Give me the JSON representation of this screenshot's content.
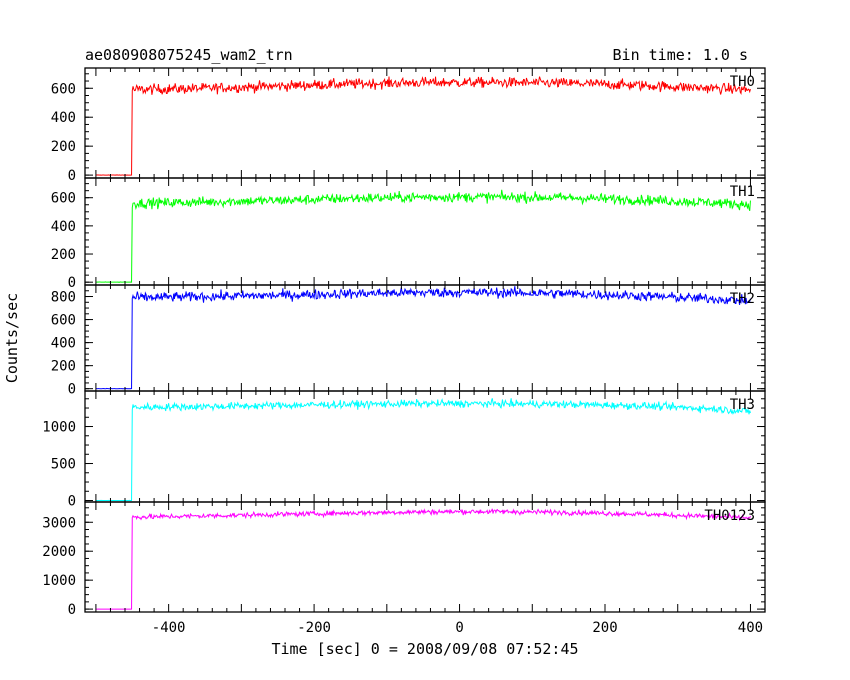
{
  "header": {
    "title": "ae080908075245_wam2_trn",
    "bin_time": "Bin time: 1.0 s"
  },
  "axes": {
    "xlabel": "Time [sec] 0 = 2008/09/08 07:52:45",
    "ylabel": "Counts/sec",
    "xlim": [
      -515,
      420
    ],
    "xticks": [
      -400,
      -200,
      0,
      200,
      400
    ]
  },
  "chart_data": [
    {
      "type": "line",
      "name": "TH0",
      "color": "#ff0000",
      "ylim": [
        -20,
        740
      ],
      "yticks": [
        0,
        200,
        400,
        600
      ],
      "pre_level": 0,
      "onset_time": -450,
      "profile": {
        "x": [
          -450,
          -350,
          -250,
          -150,
          -50,
          50,
          150,
          250,
          350,
          400
        ],
        "y": [
          590,
          600,
          615,
          630,
          640,
          640,
          635,
          620,
          600,
          590
        ]
      },
      "noise": 25
    },
    {
      "type": "line",
      "name": "TH1",
      "color": "#00ff00",
      "ylim": [
        -20,
        740
      ],
      "yticks": [
        0,
        200,
        400,
        600
      ],
      "pre_level": 0,
      "onset_time": -450,
      "profile": {
        "x": [
          -450,
          -350,
          -250,
          -150,
          -50,
          50,
          150,
          250,
          350,
          400
        ],
        "y": [
          560,
          570,
          580,
          595,
          605,
          605,
          600,
          585,
          565,
          550
        ]
      },
      "noise": 25
    },
    {
      "type": "line",
      "name": "TH2",
      "color": "#0000ff",
      "ylim": [
        -20,
        900
      ],
      "yticks": [
        0,
        200,
        400,
        600,
        800
      ],
      "pre_level": 0,
      "onset_time": -450,
      "profile": {
        "x": [
          -450,
          -350,
          -250,
          -150,
          -50,
          50,
          150,
          250,
          350,
          400
        ],
        "y": [
          790,
          800,
          810,
          825,
          835,
          835,
          825,
          805,
          780,
          760
        ]
      },
      "noise": 30
    },
    {
      "type": "line",
      "name": "TH3",
      "color": "#00ffff",
      "ylim": [
        -20,
        1480
      ],
      "yticks": [
        0,
        500,
        1000
      ],
      "pre_level": 0,
      "onset_time": -450,
      "profile": {
        "x": [
          -450,
          -350,
          -250,
          -150,
          -50,
          50,
          150,
          250,
          350,
          400
        ],
        "y": [
          1260,
          1270,
          1285,
          1300,
          1310,
          1310,
          1300,
          1280,
          1240,
          1200
        ]
      },
      "noise": 35
    },
    {
      "type": "line",
      "name": "TH0123",
      "color": "#ff00ff",
      "ylim": [
        -100,
        3700
      ],
      "yticks": [
        0,
        1000,
        2000,
        3000
      ],
      "pre_level": 0,
      "onset_time": -450,
      "profile": {
        "x": [
          -450,
          -350,
          -250,
          -150,
          -50,
          50,
          150,
          250,
          350,
          400
        ],
        "y": [
          3180,
          3220,
          3270,
          3320,
          3360,
          3370,
          3340,
          3280,
          3200,
          3150
        ]
      },
      "noise": 60
    }
  ]
}
